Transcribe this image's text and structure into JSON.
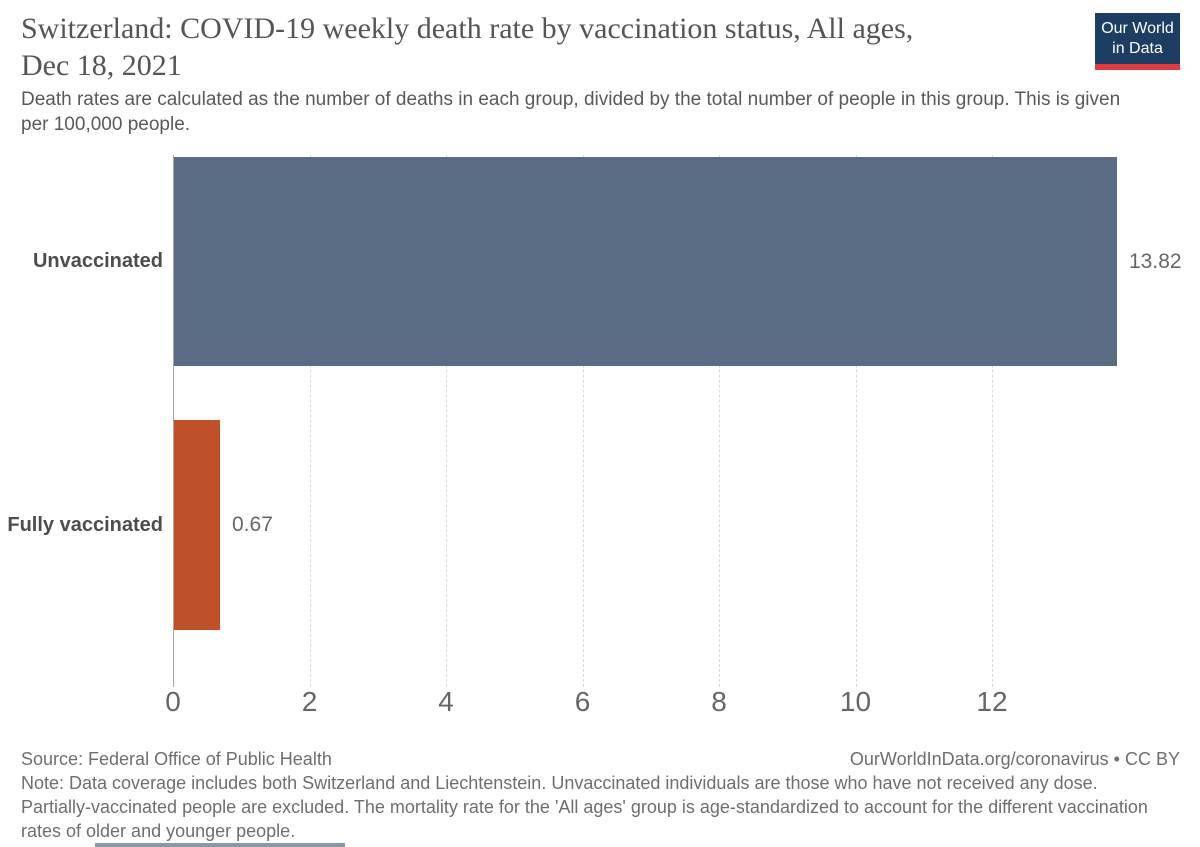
{
  "header": {
    "title_line1": "Switzerland: COVID-19 weekly death rate by vaccination status, All ages,",
    "title_line2": "Dec 18, 2021",
    "subtitle": "Death rates are calculated as the number of deaths in each group, divided by the total number of people in this group. This is given per 100,000 people.",
    "logo": {
      "line1": "Our World",
      "line2": "in Data",
      "bg_color": "#1d3d63",
      "accent_color": "#dc3d43"
    }
  },
  "chart_data": {
    "type": "bar",
    "orientation": "horizontal",
    "title": "Switzerland: COVID-19 weekly death rate by vaccination status, All ages, Dec 18, 2021",
    "categories": [
      "Unvaccinated",
      "Fully vaccinated"
    ],
    "values": [
      13.82,
      0.67
    ],
    "value_labels": [
      "13.82",
      "0.67"
    ],
    "bar_colors": [
      "#5a6c84",
      "#bf5129"
    ],
    "x_ticks": [
      0,
      2,
      4,
      6,
      8,
      10,
      12
    ],
    "xlim": [
      0,
      13.82
    ],
    "xlabel": "",
    "ylabel": "",
    "grid": "vertical-dashed",
    "legend_position": "none"
  },
  "footer": {
    "source": "Source: Federal Office of Public Health",
    "attribution": "OurWorldInData.org/coronavirus • CC BY",
    "note_lines": [
      "Note: Data coverage includes both Switzerland and Liechtenstein. Unvaccinated individuals are those who have not received any dose.",
      "Partially-vaccinated people are excluded. The mortality rate for the 'All ages' group is age-standardized to account for the different vaccination",
      "rates of older and younger people."
    ]
  }
}
